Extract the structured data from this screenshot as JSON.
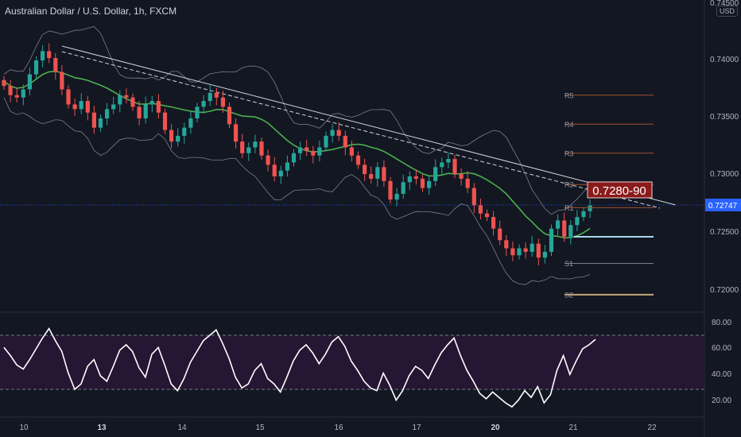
{
  "header": {
    "title": "Australian Dollar / U.S. Dollar, 1h, FXCM",
    "currency": "USD"
  },
  "price_axis": {
    "labels": [
      "0.74500",
      "0.74000",
      "0.73500",
      "0.73000",
      "0.72500",
      "0.72000"
    ],
    "current": "0.72747"
  },
  "rsi_axis": {
    "labels": [
      "80.00",
      "60.00",
      "40.00",
      "20.00"
    ]
  },
  "time_axis": {
    "labels": [
      "10",
      "13",
      "14",
      "15",
      "16",
      "17",
      "20",
      "21",
      "22"
    ]
  },
  "pivots": {
    "labels": [
      "R5",
      "R4",
      "R3",
      "R2",
      "R1",
      "S1",
      "S2"
    ]
  },
  "annotation": {
    "target": "0.7280-90"
  },
  "colors": {
    "up": "#26a69a",
    "down": "#ef5350",
    "ma": "#4caf50",
    "rsi": "#ffffff",
    "background": "#131722",
    "rsi_band": "#2a1638",
    "target_box": "#8b1a1a"
  },
  "chart_data": [
    {
      "type": "candlestick",
      "title": "Australian Dollar / U.S. Dollar, 1h, FXCM",
      "ylabel": "USD",
      "ylim": [
        0.7185,
        0.745
      ],
      "x_tick_labels": [
        "10",
        "13",
        "14",
        "15",
        "16",
        "17",
        "20",
        "21",
        "22"
      ],
      "y_tick_labels": [
        "0.74500",
        "0.74000",
        "0.73500",
        "0.73000",
        "0.72500",
        "0.72000"
      ],
      "current_price": 0.72747,
      "path_prices": [
        0.7383,
        0.7378,
        0.737,
        0.7368,
        0.7375,
        0.7388,
        0.74,
        0.7408,
        0.7402,
        0.739,
        0.7375,
        0.7362,
        0.7358,
        0.7365,
        0.7355,
        0.7342,
        0.735,
        0.7358,
        0.7362,
        0.737,
        0.7368,
        0.736,
        0.735,
        0.7362,
        0.7365,
        0.7355,
        0.734,
        0.733,
        0.7335,
        0.7342,
        0.735,
        0.736,
        0.7365,
        0.7372,
        0.7368,
        0.736,
        0.7345,
        0.733,
        0.732,
        0.7325,
        0.733,
        0.7318,
        0.731,
        0.73,
        0.7305,
        0.7312,
        0.732,
        0.7325,
        0.7322,
        0.7318,
        0.7325,
        0.7335,
        0.734,
        0.7335,
        0.7325,
        0.7318,
        0.731,
        0.7302,
        0.7298,
        0.7308,
        0.7296,
        0.728,
        0.7285,
        0.7295,
        0.73,
        0.7298,
        0.729,
        0.7296,
        0.7308,
        0.7312,
        0.7315,
        0.7302,
        0.7298,
        0.729,
        0.7275,
        0.7268,
        0.7265,
        0.7255,
        0.7245,
        0.7238,
        0.7232,
        0.7238,
        0.7235,
        0.7242,
        0.723,
        0.7235,
        0.7255,
        0.7262,
        0.7248,
        0.7258,
        0.7265,
        0.727,
        0.7275
      ],
      "series": [
        {
          "name": "RSI",
          "ylim": [
            10,
            88
          ],
          "y_tick_labels": [
            "80.00",
            "60.00",
            "40.00",
            "20.00"
          ],
          "bands": [
            30,
            70
          ],
          "values": [
            61,
            55,
            48,
            45,
            52,
            60,
            68,
            75,
            66,
            58,
            42,
            30,
            34,
            47,
            52,
            40,
            36,
            47,
            59,
            63,
            58,
            46,
            39,
            56,
            61,
            48,
            34,
            29,
            38,
            50,
            58,
            66,
            70,
            74,
            64,
            53,
            39,
            31,
            34,
            44,
            49,
            38,
            34,
            28,
            39,
            51,
            59,
            63,
            57,
            49,
            56,
            65,
            69,
            62,
            51,
            44,
            36,
            31,
            29,
            42,
            33,
            22,
            29,
            40,
            47,
            44,
            38,
            48,
            57,
            63,
            68,
            55,
            44,
            36,
            27,
            23,
            28,
            24,
            20,
            17,
            22,
            29,
            24,
            32,
            20,
            26,
            44,
            55,
            41,
            51,
            60,
            63,
            67
          ]
        },
        {
          "name": "Pivot levels",
          "labels": [
            "R5",
            "R4",
            "R3",
            "R2",
            "R1",
            "S1",
            "S2"
          ],
          "values": [
            0.737,
            0.7345,
            0.732,
            0.7293,
            0.7273,
            0.7225,
            0.7198
          ]
        }
      ],
      "annotations": [
        "0.7280-90"
      ]
    }
  ]
}
